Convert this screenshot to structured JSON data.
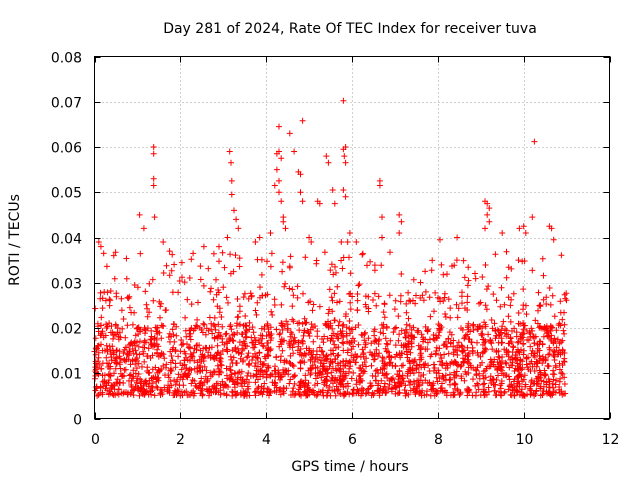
{
  "chart_data": {
    "type": "scatter",
    "title": "Day 281 of 2024, Rate Of TEC Index for receiver tuva",
    "xlabel": "GPS time / hours",
    "ylabel": "ROTI / TECUs",
    "xlim": [
      0,
      12
    ],
    "ylim": [
      0,
      0.08
    ],
    "xticks": [
      0,
      2,
      4,
      6,
      8,
      10,
      12
    ],
    "xtick_labels": [
      "0",
      "2",
      "4",
      "6",
      "8",
      "10",
      "12"
    ],
    "yticks": [
      0,
      0.01,
      0.02,
      0.03,
      0.04,
      0.05,
      0.06,
      0.07,
      0.08
    ],
    "ytick_labels": [
      "0",
      "0.01",
      "0.02",
      "0.03",
      "0.04",
      "0.05",
      "0.06",
      "0.07",
      "0.08"
    ],
    "grid": true,
    "marker": "plus",
    "color": "#ff0000",
    "series": [
      {
        "name": "ROTI",
        "summary": {
          "x_range_hours": [
            0,
            11
          ],
          "typical_band": [
            0.005,
            0.025
          ],
          "floor": 0.002
        },
        "outliers": [
          [
            0.1,
            0.039
          ],
          [
            0.15,
            0.038
          ],
          [
            0.45,
            0.036
          ],
          [
            1.05,
            0.045
          ],
          [
            1.15,
            0.042
          ],
          [
            1.38,
            0.06
          ],
          [
            1.38,
            0.0585
          ],
          [
            1.38,
            0.053
          ],
          [
            1.38,
            0.0515
          ],
          [
            1.4,
            0.0445
          ],
          [
            1.6,
            0.039
          ],
          [
            1.75,
            0.037
          ],
          [
            2.55,
            0.038
          ],
          [
            2.9,
            0.038
          ],
          [
            3.15,
            0.059
          ],
          [
            3.18,
            0.0565
          ],
          [
            3.2,
            0.0525
          ],
          [
            3.2,
            0.0495
          ],
          [
            3.25,
            0.046
          ],
          [
            3.3,
            0.044
          ],
          [
            3.35,
            0.042
          ],
          [
            3.1,
            0.04
          ],
          [
            3.75,
            0.039
          ],
          [
            3.85,
            0.04
          ],
          [
            4.1,
            0.041
          ],
          [
            4.3,
            0.0645
          ],
          [
            4.25,
            0.0585
          ],
          [
            4.3,
            0.059
          ],
          [
            4.35,
            0.0575
          ],
          [
            4.25,
            0.055
          ],
          [
            4.3,
            0.0525
          ],
          [
            4.2,
            0.0515
          ],
          [
            4.3,
            0.05
          ],
          [
            4.35,
            0.048
          ],
          [
            4.4,
            0.0445
          ],
          [
            4.45,
            0.042
          ],
          [
            4.4,
            0.0435
          ],
          [
            4.55,
            0.063
          ],
          [
            4.65,
            0.059
          ],
          [
            4.75,
            0.0545
          ],
          [
            4.8,
            0.054
          ],
          [
            4.85,
            0.0658
          ],
          [
            4.8,
            0.05
          ],
          [
            4.85,
            0.048
          ],
          [
            5.0,
            0.04
          ],
          [
            5.05,
            0.039
          ],
          [
            5.2,
            0.048
          ],
          [
            5.25,
            0.0475
          ],
          [
            5.4,
            0.058
          ],
          [
            5.45,
            0.0565
          ],
          [
            5.55,
            0.0505
          ],
          [
            5.6,
            0.0475
          ],
          [
            5.8,
            0.0702
          ],
          [
            5.85,
            0.06
          ],
          [
            5.8,
            0.0595
          ],
          [
            5.82,
            0.058
          ],
          [
            5.85,
            0.0565
          ],
          [
            5.8,
            0.0505
          ],
          [
            5.85,
            0.049
          ],
          [
            5.75,
            0.039
          ],
          [
            5.9,
            0.039
          ],
          [
            5.95,
            0.041
          ],
          [
            6.1,
            0.039
          ],
          [
            6.65,
            0.0525
          ],
          [
            6.65,
            0.0515
          ],
          [
            6.7,
            0.0445
          ],
          [
            6.7,
            0.04
          ],
          [
            7.1,
            0.045
          ],
          [
            7.15,
            0.0435
          ],
          [
            7.1,
            0.041
          ],
          [
            8.05,
            0.0395
          ],
          [
            8.45,
            0.04
          ],
          [
            9.1,
            0.048
          ],
          [
            9.15,
            0.0475
          ],
          [
            9.2,
            0.0465
          ],
          [
            9.15,
            0.045
          ],
          [
            9.2,
            0.0435
          ],
          [
            9.1,
            0.042
          ],
          [
            9.5,
            0.041
          ],
          [
            9.9,
            0.042
          ],
          [
            10.0,
            0.0425
          ],
          [
            10.05,
            0.041
          ],
          [
            10.25,
            0.0612
          ],
          [
            10.2,
            0.0445
          ],
          [
            10.6,
            0.0425
          ],
          [
            10.65,
            0.042
          ],
          [
            10.7,
            0.0395
          ]
        ]
      }
    ]
  }
}
